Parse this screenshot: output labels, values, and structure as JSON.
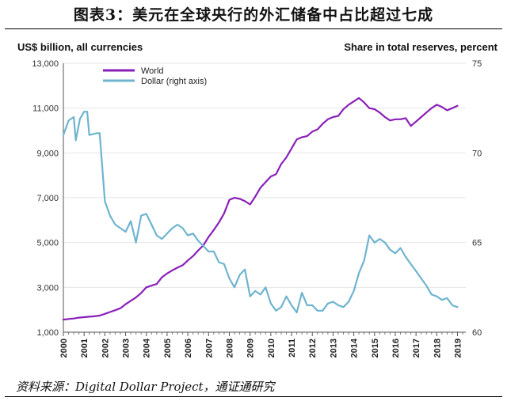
{
  "page": {
    "title": "图表3：美元在全球央行的外汇储备中占比超过七成",
    "source": "资料来源：Digital Dollar Project，通证通研究"
  },
  "chart_data": {
    "type": "line",
    "left_axis_title": "US$ billion, all currencies",
    "right_axis_title": "Share in total reserves, percent",
    "x_range": [
      2000,
      2019.4
    ],
    "x_ticks": [
      "2000",
      "2001",
      "2002",
      "2003",
      "2004",
      "2005",
      "2006",
      "2007",
      "2008",
      "2009",
      "2010",
      "2011",
      "2012",
      "2013",
      "2014",
      "2015",
      "2016",
      "2017",
      "2018",
      "2019"
    ],
    "left_ylim": [
      1000,
      13000
    ],
    "left_ticks": [
      "1,000",
      "3,000",
      "5,000",
      "7,000",
      "9,000",
      "11,000",
      "13,000"
    ],
    "right_ylim": [
      60,
      75
    ],
    "right_ticks": [
      "60",
      "65",
      "70",
      "75"
    ],
    "colors": {
      "world": "#8a1fb8",
      "dollar": "#6fb4cf",
      "axis": "#555555",
      "grid": "#e6e6e6"
    },
    "series": [
      {
        "name": "World",
        "axis": "left",
        "points": [
          [
            2000.0,
            1560
          ],
          [
            2000.25,
            1590
          ],
          [
            2000.5,
            1610
          ],
          [
            2000.75,
            1650
          ],
          [
            2001.0,
            1670
          ],
          [
            2001.25,
            1690
          ],
          [
            2001.5,
            1710
          ],
          [
            2001.75,
            1740
          ],
          [
            2002.0,
            1820
          ],
          [
            2002.25,
            1900
          ],
          [
            2002.5,
            1980
          ],
          [
            2002.75,
            2070
          ],
          [
            2003.0,
            2250
          ],
          [
            2003.25,
            2400
          ],
          [
            2003.5,
            2550
          ],
          [
            2003.75,
            2750
          ],
          [
            2004.0,
            3000
          ],
          [
            2004.25,
            3080
          ],
          [
            2004.5,
            3150
          ],
          [
            2004.75,
            3450
          ],
          [
            2005.0,
            3620
          ],
          [
            2005.25,
            3760
          ],
          [
            2005.5,
            3880
          ],
          [
            2005.75,
            3990
          ],
          [
            2006.0,
            4200
          ],
          [
            2006.25,
            4400
          ],
          [
            2006.5,
            4650
          ],
          [
            2006.75,
            4880
          ],
          [
            2007.0,
            5250
          ],
          [
            2007.25,
            5560
          ],
          [
            2007.5,
            5900
          ],
          [
            2007.75,
            6300
          ],
          [
            2008.0,
            6900
          ],
          [
            2008.25,
            7000
          ],
          [
            2008.5,
            6950
          ],
          [
            2008.75,
            6850
          ],
          [
            2009.0,
            6700
          ],
          [
            2009.25,
            7050
          ],
          [
            2009.5,
            7450
          ],
          [
            2009.75,
            7700
          ],
          [
            2010.0,
            7950
          ],
          [
            2010.25,
            8050
          ],
          [
            2010.5,
            8500
          ],
          [
            2010.75,
            8800
          ],
          [
            2011.0,
            9200
          ],
          [
            2011.25,
            9600
          ],
          [
            2011.5,
            9700
          ],
          [
            2011.75,
            9750
          ],
          [
            2012.0,
            9950
          ],
          [
            2012.25,
            10050
          ],
          [
            2012.5,
            10300
          ],
          [
            2012.75,
            10500
          ],
          [
            2013.0,
            10600
          ],
          [
            2013.25,
            10650
          ],
          [
            2013.5,
            10950
          ],
          [
            2013.75,
            11150
          ],
          [
            2014.0,
            11300
          ],
          [
            2014.25,
            11450
          ],
          [
            2014.5,
            11250
          ],
          [
            2014.75,
            11000
          ],
          [
            2015.0,
            10950
          ],
          [
            2015.25,
            10800
          ],
          [
            2015.5,
            10600
          ],
          [
            2015.75,
            10450
          ],
          [
            2016.0,
            10500
          ],
          [
            2016.25,
            10500
          ],
          [
            2016.5,
            10550
          ],
          [
            2016.75,
            10200
          ],
          [
            2017.0,
            10400
          ],
          [
            2017.25,
            10600
          ],
          [
            2017.5,
            10800
          ],
          [
            2017.75,
            11000
          ],
          [
            2018.0,
            11150
          ],
          [
            2018.25,
            11050
          ],
          [
            2018.5,
            10900
          ],
          [
            2018.75,
            11000
          ],
          [
            2019.0,
            11100
          ]
        ]
      },
      {
        "name": "Dollar (right axis)",
        "axis": "right",
        "points": [
          [
            2000.0,
            71.0
          ],
          [
            2000.25,
            71.8
          ],
          [
            2000.5,
            72.0
          ],
          [
            2000.6,
            70.7
          ],
          [
            2000.8,
            71.9
          ],
          [
            2001.0,
            72.3
          ],
          [
            2001.15,
            72.3
          ],
          [
            2001.25,
            71.0
          ],
          [
            2001.6,
            71.1
          ],
          [
            2001.75,
            71.1
          ],
          [
            2002.0,
            67.3
          ],
          [
            2002.25,
            66.5
          ],
          [
            2002.5,
            66.0
          ],
          [
            2002.75,
            65.8
          ],
          [
            2003.0,
            65.6
          ],
          [
            2003.25,
            66.2
          ],
          [
            2003.5,
            65.0
          ],
          [
            2003.75,
            66.5
          ],
          [
            2004.0,
            66.6
          ],
          [
            2004.25,
            66.0
          ],
          [
            2004.5,
            65.4
          ],
          [
            2004.75,
            65.2
          ],
          [
            2005.0,
            65.5
          ],
          [
            2005.25,
            65.8
          ],
          [
            2005.5,
            66.0
          ],
          [
            2005.75,
            65.8
          ],
          [
            2006.0,
            65.4
          ],
          [
            2006.25,
            65.5
          ],
          [
            2006.5,
            65.1
          ],
          [
            2006.75,
            64.8
          ],
          [
            2007.0,
            64.5
          ],
          [
            2007.25,
            64.5
          ],
          [
            2007.5,
            63.9
          ],
          [
            2007.75,
            63.8
          ],
          [
            2008.0,
            63.0
          ],
          [
            2008.25,
            62.5
          ],
          [
            2008.5,
            63.2
          ],
          [
            2008.75,
            63.5
          ],
          [
            2009.0,
            62.0
          ],
          [
            2009.25,
            62.3
          ],
          [
            2009.5,
            62.1
          ],
          [
            2009.75,
            62.5
          ],
          [
            2010.0,
            61.6
          ],
          [
            2010.25,
            61.2
          ],
          [
            2010.5,
            61.4
          ],
          [
            2010.75,
            62.0
          ],
          [
            2011.0,
            61.5
          ],
          [
            2011.25,
            61.1
          ],
          [
            2011.5,
            62.2
          ],
          [
            2011.75,
            61.5
          ],
          [
            2012.0,
            61.5
          ],
          [
            2012.25,
            61.2
          ],
          [
            2012.5,
            61.2
          ],
          [
            2012.75,
            61.6
          ],
          [
            2013.0,
            61.7
          ],
          [
            2013.25,
            61.5
          ],
          [
            2013.5,
            61.4
          ],
          [
            2013.75,
            61.7
          ],
          [
            2014.0,
            62.3
          ],
          [
            2014.25,
            63.3
          ],
          [
            2014.5,
            64.0
          ],
          [
            2014.75,
            65.4
          ],
          [
            2015.0,
            65.0
          ],
          [
            2015.25,
            65.2
          ],
          [
            2015.5,
            65.0
          ],
          [
            2015.75,
            64.6
          ],
          [
            2016.0,
            64.4
          ],
          [
            2016.25,
            64.7
          ],
          [
            2016.5,
            64.2
          ],
          [
            2016.75,
            63.8
          ],
          [
            2017.0,
            63.4
          ],
          [
            2017.25,
            63.0
          ],
          [
            2017.5,
            62.6
          ],
          [
            2017.75,
            62.1
          ],
          [
            2018.0,
            62.0
          ],
          [
            2018.25,
            61.8
          ],
          [
            2018.5,
            61.9
          ],
          [
            2018.75,
            61.5
          ],
          [
            2019.0,
            61.4
          ]
        ]
      }
    ]
  }
}
